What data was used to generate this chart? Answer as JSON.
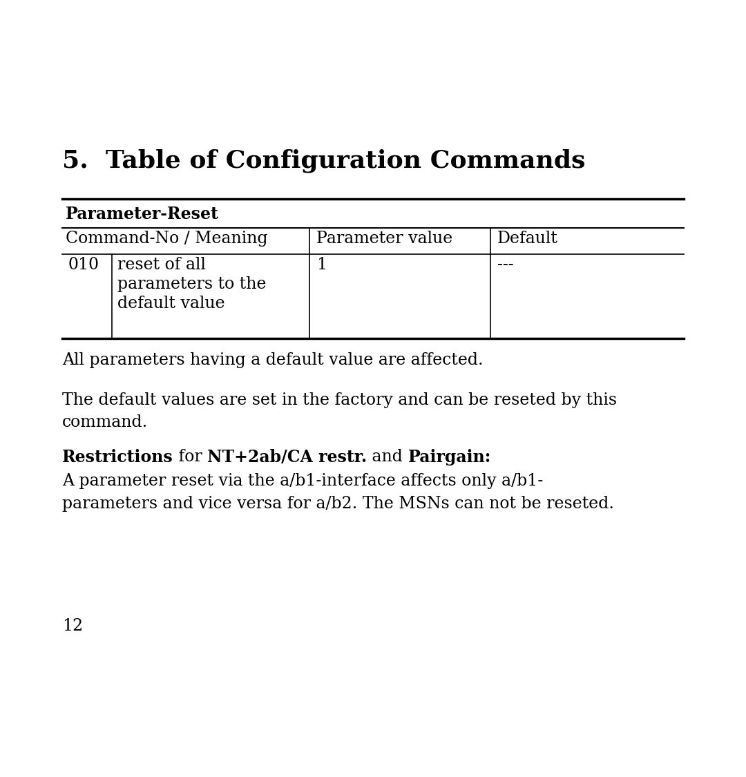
{
  "title": "5.  Table of Configuration Commands",
  "title_fontsize": 26,
  "background_color": "#ffffff",
  "text_color": "#000000",
  "table_section_label": "Parameter-Reset",
  "table_col_headers": [
    "Command-No / Meaning",
    "Parameter value",
    "Default"
  ],
  "table_row": {
    "cmd_no": "010",
    "meaning_lines": [
      "reset of all",
      "parameters to the",
      "default value"
    ],
    "param_value": "1",
    "default": "---"
  },
  "paragraph1": "All parameters having a default value are affected.",
  "paragraph2_line1": "The default values are set in the factory and can be reseted by this",
  "paragraph2_line2": "command.",
  "restrictions_segments": [
    [
      "Restrictions",
      true
    ],
    [
      " for ",
      false
    ],
    [
      "NT+2ab/CA restr.",
      true
    ],
    [
      " and ",
      false
    ],
    [
      "Pairgain:",
      true
    ]
  ],
  "restrictions_body_line1": "A parameter reset via the a/b1-interface affects only a/b1-",
  "restrictions_body_line2": "parameters and vice versa for a/b2. The MSNs can not be reseted.",
  "page_number": "12",
  "body_fontsize": 17,
  "table_fontsize": 17
}
